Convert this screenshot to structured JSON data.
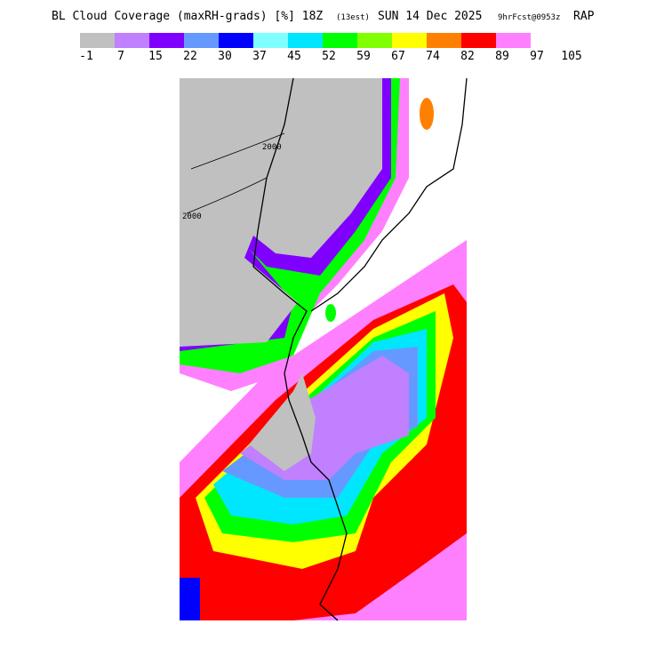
{
  "header": {
    "title": "BL Cloud Coverage (maxRH-grads) [%] 18Z",
    "title_small": "(13est)",
    "date": "SUN 14 Dec 2025",
    "forecast": "9hrFcst@0953z",
    "model": "RAP"
  },
  "legend": {
    "colors": [
      "#c0c0c0",
      "#c080ff",
      "#8000ff",
      "#6699ff",
      "#0000ff",
      "#80ffff",
      "#00e6ff",
      "#00ff00",
      "#80ff00",
      "#ffff00",
      "#ff8000",
      "#ff0000",
      "#ff80ff"
    ],
    "labels": [
      "-1",
      "7",
      "15",
      "22",
      "30",
      "37",
      "45",
      "52",
      "59",
      "67",
      "74",
      "82",
      "89",
      "97",
      "105"
    ]
  },
  "map": {
    "contour_labels": [
      "2000",
      "2000"
    ]
  }
}
